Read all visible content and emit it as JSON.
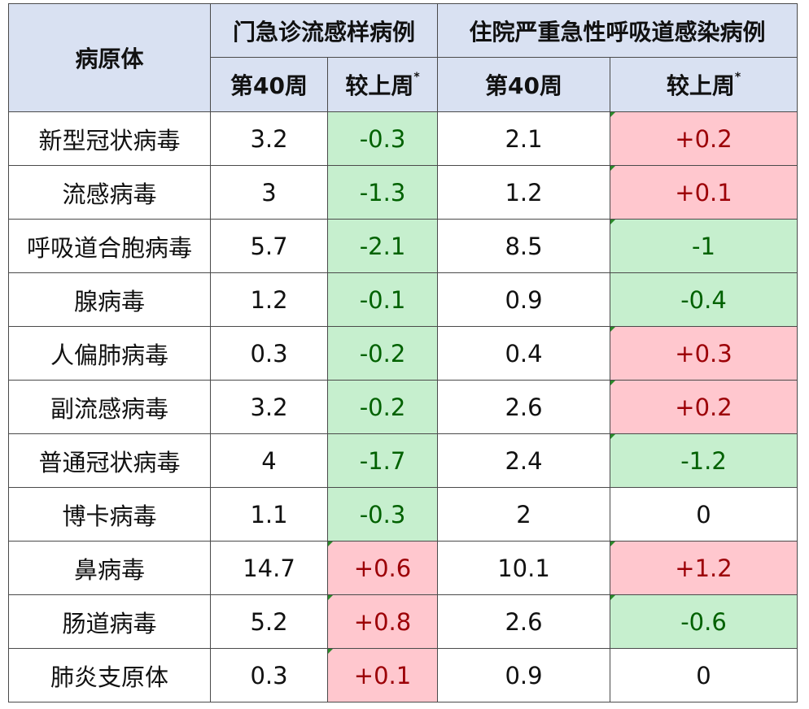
{
  "header": {
    "pathogen_label": "病原体",
    "group_outpatient": "门急诊流感样病例",
    "group_inpatient": "住院严重急性呼吸道感染病例",
    "week_label": "第40周",
    "change_label": "较上周",
    "change_marker": "*"
  },
  "colors": {
    "header_bg": "#d9e1f2",
    "decrease_bg": "#c6efce",
    "decrease_text": "#006100",
    "increase_bg": "#ffc7ce",
    "increase_text": "#9c0006"
  },
  "rows": [
    {
      "pathogen": "新型冠状病毒",
      "op_week": "3.2",
      "op_change": "-0.3",
      "ip_week": "2.1",
      "ip_change": "+0.2"
    },
    {
      "pathogen": "流感病毒",
      "op_week": "3",
      "op_change": "-1.3",
      "ip_week": "1.2",
      "ip_change": "+0.1"
    },
    {
      "pathogen": "呼吸道合胞病毒",
      "op_week": "5.7",
      "op_change": "-2.1",
      "ip_week": "8.5",
      "ip_change": "-1"
    },
    {
      "pathogen": "腺病毒",
      "op_week": "1.2",
      "op_change": "-0.1",
      "ip_week": "0.9",
      "ip_change": "-0.4"
    },
    {
      "pathogen": "人偏肺病毒",
      "op_week": "0.3",
      "op_change": "-0.2",
      "ip_week": "0.4",
      "ip_change": "+0.3"
    },
    {
      "pathogen": "副流感病毒",
      "op_week": "3.2",
      "op_change": "-0.2",
      "ip_week": "2.6",
      "ip_change": "+0.2"
    },
    {
      "pathogen": "普通冠状病毒",
      "op_week": "4",
      "op_change": "-1.7",
      "ip_week": "2.4",
      "ip_change": "-1.2"
    },
    {
      "pathogen": "博卡病毒",
      "op_week": "1.1",
      "op_change": "-0.3",
      "ip_week": "2",
      "ip_change": "0"
    },
    {
      "pathogen": "鼻病毒",
      "op_week": "14.7",
      "op_change": "+0.6",
      "ip_week": "10.1",
      "ip_change": "+1.2"
    },
    {
      "pathogen": "肠道病毒",
      "op_week": "5.2",
      "op_change": "+0.8",
      "ip_week": "2.6",
      "ip_change": "-0.6"
    },
    {
      "pathogen": "肺炎支原体",
      "op_week": "0.3",
      "op_change": "+0.1",
      "ip_week": "0.9",
      "ip_change": "0"
    }
  ]
}
